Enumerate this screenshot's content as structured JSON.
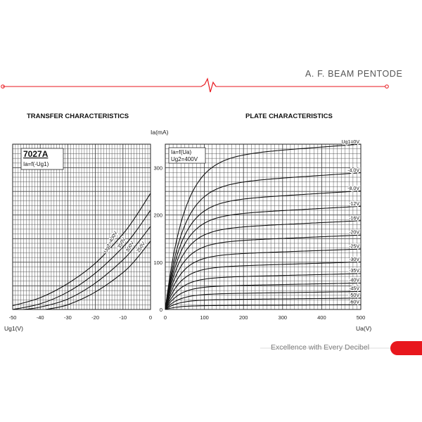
{
  "header": {
    "product_line": "A. F. BEAM PENTODE"
  },
  "footer": {
    "tagline": "Excellence with Every Decibel"
  },
  "colors": {
    "accent": "#e8171d",
    "grid": "#444444",
    "curve": "#111111"
  },
  "chart_data": [
    {
      "type": "line",
      "title": "TRANSFER CHARACTERISTICS",
      "tube": "7027A",
      "formula": "Ia=f(-Ug1)",
      "xlabel": "Ug1(V)",
      "ylabel": "",
      "xlim": [
        -50,
        0
      ],
      "ylim": [
        0,
        350
      ],
      "x_ticks": [
        -50,
        -40,
        -30,
        -20,
        -10,
        0
      ],
      "grid": true,
      "series": [
        {
          "name": "Ug2=400V",
          "x": [
            -50,
            -40,
            -30,
            -20,
            -10,
            -5,
            0
          ],
          "y": [
            8,
            25,
            55,
            98,
            160,
            200,
            246
          ]
        },
        {
          "name": "350V",
          "x": [
            -50,
            -40,
            -30,
            -20,
            -10,
            -5,
            0
          ],
          "y": [
            0,
            12,
            37,
            77,
            132,
            168,
            210
          ]
        },
        {
          "name": "300V",
          "x": [
            -46,
            -40,
            -30,
            -20,
            -10,
            -5,
            0
          ],
          "y": [
            0,
            5,
            22,
            56,
            105,
            138,
            176
          ]
        },
        {
          "name": "250V",
          "x": [
            -38,
            -30,
            -20,
            -10,
            -5,
            0
          ],
          "y": [
            0,
            10,
            37,
            78,
            108,
            145
          ]
        }
      ]
    },
    {
      "type": "line",
      "title": "PLATE CHARACTERISTICS",
      "formula": "Ia=f(Ua)",
      "condition": "Ug2=400V",
      "xlabel": "Ua(V)",
      "ylabel": "Ia(mA)",
      "xlim": [
        0,
        500
      ],
      "ylim": [
        0,
        350
      ],
      "x_ticks": [
        0,
        100,
        200,
        300,
        400,
        500
      ],
      "y_ticks": [
        0,
        100,
        200,
        300
      ],
      "grid": true,
      "series": [
        {
          "name": "Ug1=0V",
          "ia_sat": 320,
          "slope": 0.06
        },
        {
          "name": "-4,0V",
          "ia_sat": 262,
          "slope": 0.055
        },
        {
          "name": "-8,0V",
          "ia_sat": 226,
          "slope": 0.05
        },
        {
          "name": "-12V",
          "ia_sat": 196,
          "slope": 0.045
        },
        {
          "name": "-16V",
          "ia_sat": 168,
          "slope": 0.04
        },
        {
          "name": "-20V",
          "ia_sat": 140,
          "slope": 0.035
        },
        {
          "name": "-25V",
          "ia_sat": 113,
          "slope": 0.03
        },
        {
          "name": "-30V",
          "ia_sat": 88,
          "slope": 0.025
        },
        {
          "name": "-35V",
          "ia_sat": 66,
          "slope": 0.02
        },
        {
          "name": "-40V",
          "ia_sat": 48,
          "slope": 0.016
        },
        {
          "name": "-45V",
          "ia_sat": 32,
          "slope": 0.012
        },
        {
          "name": "-50V",
          "ia_sat": 20,
          "slope": 0.008
        },
        {
          "name": "-60V",
          "ia_sat": 8,
          "slope": 0.004
        }
      ]
    }
  ]
}
